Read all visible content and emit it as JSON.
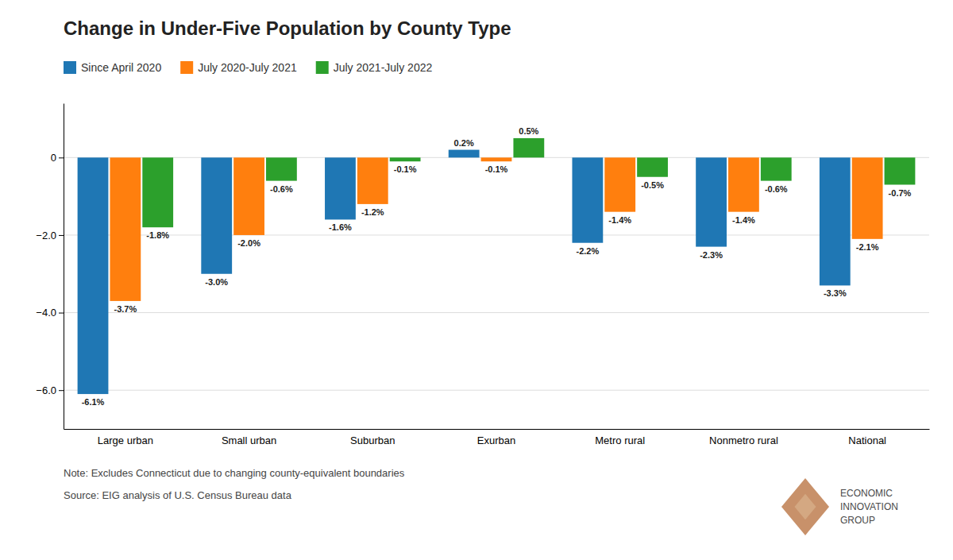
{
  "chart_data": {
    "type": "bar",
    "title": "Change in Under-Five Population by County Type",
    "categories": [
      "Large urban",
      "Small urban",
      "Suburban",
      "Exurban",
      "Metro rural",
      "Nonmetro rural",
      "National"
    ],
    "series": [
      {
        "name": "Since April 2020",
        "values": [
          -6.1,
          -3.0,
          -1.6,
          0.2,
          -2.2,
          -2.3,
          -3.3
        ],
        "value_labels": [
          "-6.1%",
          "-3.0%",
          "-1.6%",
          "0.2%",
          "-2.2%",
          "-2.3%",
          "-3.3%"
        ]
      },
      {
        "name": "July 2020-July 2021",
        "values": [
          -3.7,
          -2.0,
          -1.2,
          -0.1,
          -1.4,
          -1.4,
          -2.1
        ],
        "value_labels": [
          "-3.7%",
          "-2.0%",
          "-1.2%",
          "-0.1%",
          "-1.4%",
          "-1.4%",
          "-2.1%"
        ]
      },
      {
        "name": "July 2021-July 2022",
        "values": [
          -1.8,
          -0.6,
          -0.1,
          0.5,
          -0.5,
          -0.6,
          -0.7
        ],
        "value_labels": [
          "-1.8%",
          "-0.6%",
          "-0.1%",
          "0.5%",
          "-0.5%",
          "-0.6%",
          "-0.7%"
        ]
      }
    ],
    "ylim": [
      -7.0,
      1.4
    ],
    "yticks": [
      {
        "value": -6.0,
        "label": "−6.0"
      },
      {
        "value": -4.0,
        "label": "−4.0"
      },
      {
        "value": -2.0,
        "label": "−2.0"
      },
      0
    ],
    "grid": true,
    "legend": "top-left",
    "annotations": [
      "Note: Excludes Connecticut due to changing county-equivalent boundaries",
      "Source: EIG analysis of U.S. Census Bureau data",
      "ECONOMIC",
      "INNOVATION",
      "GROUP"
    ]
  }
}
